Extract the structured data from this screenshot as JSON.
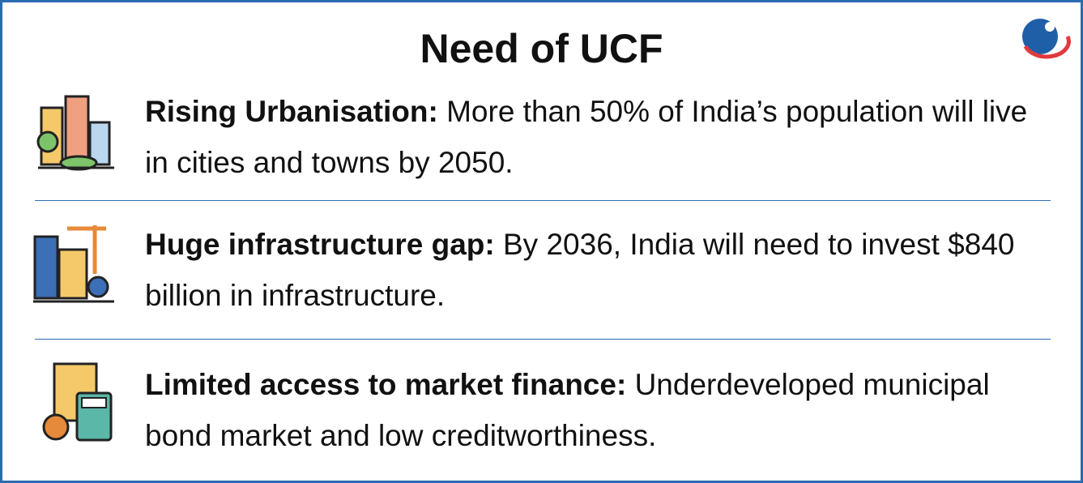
{
  "header": {
    "title": "Need of UCF"
  },
  "items": [
    {
      "heading": "Rising Urbanisation:",
      "text": "More than 50% of India’s population will live in cities and towns by 2050."
    },
    {
      "heading": "Huge infrastructure gap:",
      "text": "By 2036, India will need to invest $840 billion in infrastructure."
    },
    {
      "heading": "Limited access to market finance:",
      "text": "Underdeveloped municipal bond market and low creditworthiness."
    }
  ]
}
